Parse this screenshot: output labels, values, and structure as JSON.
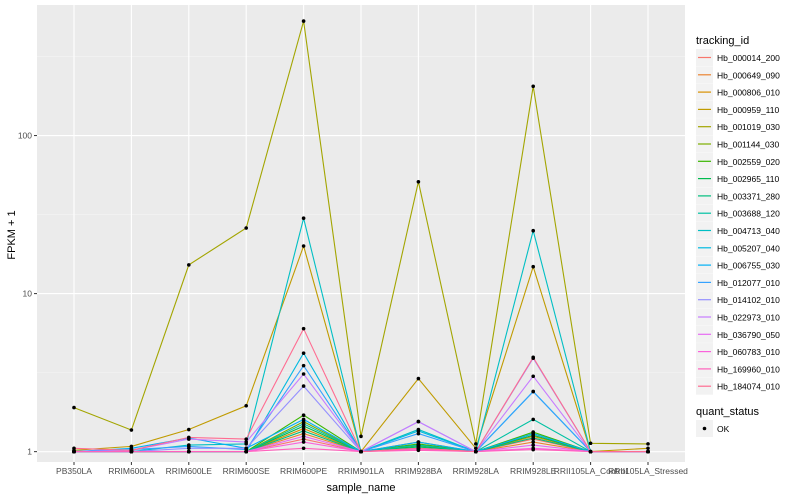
{
  "chart_data": {
    "type": "line",
    "title": "",
    "xlabel": "sample_name",
    "ylabel": "FPKM + 1",
    "y_scale": "log10",
    "ylim": [
      0.86,
      670
    ],
    "y_ticks": [
      1,
      10,
      100
    ],
    "y_tick_labels": [
      "1",
      "10",
      "100"
    ],
    "x_tick_labels": [
      "PB350LA",
      "RRIM600LA",
      "RRIM600LE",
      "RRIM600SE",
      "RRIM600PE",
      "RRIM901LA",
      "RRIM928BA",
      "RRIM928LA",
      "RRIM928LE",
      "RRII105LA_Control",
      "RRII105LA_Stressed"
    ],
    "categories": [
      "PB350LA",
      "RRIM600LA",
      "RRIM600LE",
      "RRIM600SE",
      "RRIM600PE",
      "RRIM901LA",
      "RRIM928BA",
      "RRIM928LA",
      "RRIM928LE",
      "RRII105LA_Control",
      "RRII105LA_Stressed"
    ],
    "legend_title": "tracking_id",
    "point_legend_title": "quant_status",
    "point_legend_label": "OK",
    "series": [
      {
        "name": "Hb_000014_200",
        "color": "#F8766D",
        "values": [
          1.0,
          1.0,
          1.0,
          1.0,
          1.2,
          1.0,
          1.05,
          1.0,
          1.2,
          1.0,
          1.0
        ]
      },
      {
        "name": "Hb_000649_090",
        "color": "#EA8331",
        "values": [
          1.0,
          1.0,
          1.0,
          1.0,
          1.3,
          1.0,
          1.1,
          1.0,
          1.15,
          1.0,
          1.0
        ]
      },
      {
        "name": "Hb_000806_010",
        "color": "#D89000",
        "values": [
          1.0,
          1.0,
          1.0,
          1.0,
          1.4,
          1.0,
          1.15,
          1.0,
          1.25,
          1.0,
          1.0
        ]
      },
      {
        "name": "Hb_000959_110",
        "color": "#C09B00",
        "values": [
          1.02,
          1.08,
          1.38,
          1.95,
          20.0,
          1.0,
          2.9,
          1.05,
          14.8,
          1.0,
          1.05
        ]
      },
      {
        "name": "Hb_001019_030",
        "color": "#A3A500",
        "values": [
          1.9,
          1.37,
          15.2,
          26.0,
          530.0,
          1.25,
          51.0,
          1.12,
          205.0,
          1.13,
          1.12
        ]
      },
      {
        "name": "Hb_001144_030",
        "color": "#7CAE00",
        "values": [
          1.0,
          1.0,
          1.0,
          1.0,
          1.55,
          1.0,
          1.1,
          1.0,
          1.3,
          1.0,
          1.0
        ]
      },
      {
        "name": "Hb_002559_020",
        "color": "#39B600",
        "values": [
          1.0,
          1.0,
          1.0,
          1.0,
          1.7,
          1.0,
          1.12,
          1.0,
          1.33,
          1.0,
          1.0
        ]
      },
      {
        "name": "Hb_002965_110",
        "color": "#00BB4E",
        "values": [
          1.0,
          1.0,
          1.0,
          1.0,
          1.45,
          1.0,
          1.08,
          1.0,
          1.27,
          1.0,
          1.0
        ]
      },
      {
        "name": "Hb_003371_280",
        "color": "#00BF7D",
        "values": [
          1.0,
          1.0,
          1.0,
          1.0,
          1.35,
          1.0,
          1.06,
          1.0,
          1.22,
          1.0,
          1.0
        ]
      },
      {
        "name": "Hb_003688_120",
        "color": "#00C1A3",
        "values": [
          1.0,
          1.0,
          1.0,
          1.0,
          1.5,
          1.0,
          1.1,
          1.0,
          1.6,
          1.0,
          1.0
        ]
      },
      {
        "name": "Hb_004713_040",
        "color": "#00BFC4",
        "values": [
          1.0,
          1.0,
          1.1,
          1.12,
          30.0,
          1.0,
          1.38,
          1.0,
          25.0,
          1.0,
          1.0
        ]
      },
      {
        "name": "Hb_005207_040",
        "color": "#00BAE0",
        "values": [
          1.0,
          1.0,
          1.0,
          1.0,
          4.2,
          1.0,
          1.35,
          1.0,
          2.4,
          1.0,
          1.0
        ]
      },
      {
        "name": "Hb_006755_030",
        "color": "#00B0F6",
        "values": [
          1.0,
          1.05,
          1.22,
          1.05,
          1.6,
          1.0,
          1.15,
          1.0,
          1.3,
          1.0,
          1.0
        ]
      },
      {
        "name": "Hb_012077_010",
        "color": "#35A2FF",
        "values": [
          1.0,
          1.03,
          1.08,
          1.03,
          3.5,
          1.0,
          1.3,
          1.0,
          2.4,
          1.0,
          1.0
        ]
      },
      {
        "name": "Hb_014102_010",
        "color": "#9590FF",
        "values": [
          1.0,
          1.0,
          1.05,
          1.05,
          2.6,
          1.0,
          1.55,
          1.0,
          3.9,
          1.0,
          1.0
        ]
      },
      {
        "name": "Hb_022973_010",
        "color": "#C77CFF",
        "values": [
          1.0,
          1.02,
          1.2,
          1.15,
          3.1,
          1.0,
          1.55,
          1.0,
          3.0,
          1.0,
          1.0
        ]
      },
      {
        "name": "Hb_036790_050",
        "color": "#E76BF3",
        "values": [
          1.0,
          1.0,
          1.0,
          1.0,
          1.25,
          1.0,
          1.05,
          1.0,
          1.1,
          1.0,
          1.0
        ]
      },
      {
        "name": "Hb_060783_010",
        "color": "#FA62DB",
        "values": [
          1.0,
          1.0,
          1.0,
          1.0,
          1.15,
          1.0,
          1.03,
          1.0,
          1.05,
          1.0,
          1.0
        ]
      },
      {
        "name": "Hb_169960_010",
        "color": "#FF62BC",
        "values": [
          1.0,
          1.0,
          1.0,
          1.0,
          1.05,
          1.0,
          1.02,
          1.0,
          1.03,
          1.0,
          1.0
        ]
      },
      {
        "name": "Hb_184074_010",
        "color": "#FF6C91",
        "values": [
          1.05,
          1.02,
          1.23,
          1.2,
          6.0,
          1.0,
          1.05,
          1.0,
          3.95,
          1.0,
          1.0
        ]
      }
    ]
  }
}
